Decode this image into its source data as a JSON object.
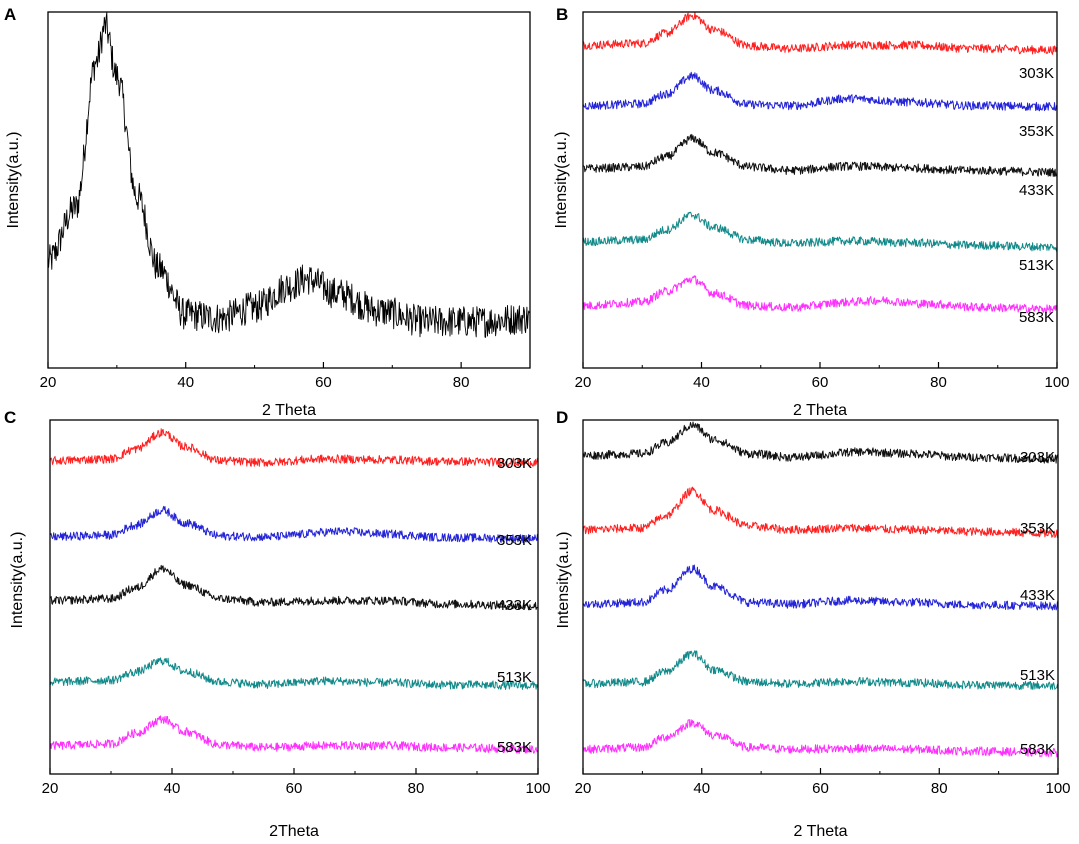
{
  "chart_data": [
    {
      "panel": "A",
      "type": "line",
      "title": "",
      "xlabel": "2 Theta",
      "ylabel": "Intensity(a.u.)",
      "xlim": [
        20,
        90
      ],
      "ylim": [
        0,
        1
      ],
      "xticks": [
        20,
        40,
        60,
        80
      ],
      "series": [
        {
          "name": "",
          "color": "#000000",
          "points": [
            [
              20,
              0.3
            ],
            [
              24,
              0.45
            ],
            [
              27,
              0.86
            ],
            [
              28.3,
              0.96
            ],
            [
              30,
              0.82
            ],
            [
              33,
              0.48
            ],
            [
              36,
              0.28
            ],
            [
              40,
              0.15
            ],
            [
              45,
              0.14
            ],
            [
              50,
              0.17
            ],
            [
              55,
              0.23
            ],
            [
              57.5,
              0.25
            ],
            [
              62,
              0.21
            ],
            [
              68,
              0.16
            ],
            [
              75,
              0.13
            ],
            [
              82,
              0.13
            ],
            [
              90,
              0.14
            ]
          ]
        }
      ]
    },
    {
      "panel": "B",
      "type": "line",
      "title": "",
      "xlabel": "2 Theta",
      "ylabel": "Intensity(a.u.)",
      "xlim": [
        20,
        100
      ],
      "ylim": [
        0,
        1
      ],
      "xticks": [
        20,
        40,
        60,
        80,
        100
      ],
      "series": [
        {
          "name": "303K",
          "color": "#ff2020",
          "points": [
            [
              20,
              0.907
            ],
            [
              30,
              0.912
            ],
            [
              34,
              0.94
            ],
            [
              38.5,
              0.99
            ],
            [
              42,
              0.95
            ],
            [
              48,
              0.905
            ],
            [
              55,
              0.897
            ],
            [
              65,
              0.907
            ],
            [
              75,
              0.907
            ],
            [
              85,
              0.898
            ],
            [
              100,
              0.893
            ]
          ]
        },
        {
          "name": "353K",
          "color": "#2424d8",
          "points": [
            [
              20,
              0.737
            ],
            [
              30,
              0.742
            ],
            [
              34,
              0.77
            ],
            [
              38.5,
              0.82
            ],
            [
              42,
              0.78
            ],
            [
              48,
              0.74
            ],
            [
              55,
              0.737
            ],
            [
              65,
              0.757
            ],
            [
              75,
              0.747
            ],
            [
              85,
              0.737
            ],
            [
              100,
              0.734
            ]
          ]
        },
        {
          "name": "433K",
          "color": "#111111",
          "points": [
            [
              20,
              0.56
            ],
            [
              30,
              0.565
            ],
            [
              34,
              0.593
            ],
            [
              38.5,
              0.645
            ],
            [
              42,
              0.605
            ],
            [
              48,
              0.565
            ],
            [
              55,
              0.555
            ],
            [
              65,
              0.567
            ],
            [
              75,
              0.562
            ],
            [
              85,
              0.555
            ],
            [
              100,
              0.55
            ]
          ]
        },
        {
          "name": "513K",
          "color": "#138a8a",
          "points": [
            [
              20,
              0.355
            ],
            [
              30,
              0.36
            ],
            [
              34,
              0.388
            ],
            [
              38.5,
              0.43
            ],
            [
              42,
              0.395
            ],
            [
              48,
              0.36
            ],
            [
              55,
              0.35
            ],
            [
              65,
              0.357
            ],
            [
              75,
              0.352
            ],
            [
              85,
              0.345
            ],
            [
              100,
              0.34
            ]
          ]
        },
        {
          "name": "583K",
          "color": "#ff30ff",
          "points": [
            [
              20,
              0.175
            ],
            [
              30,
              0.185
            ],
            [
              34,
              0.215
            ],
            [
              38.5,
              0.25
            ],
            [
              42,
              0.21
            ],
            [
              48,
              0.175
            ],
            [
              55,
              0.17
            ],
            [
              65,
              0.185
            ],
            [
              70,
              0.19
            ],
            [
              78,
              0.18
            ],
            [
              88,
              0.17
            ],
            [
              100,
              0.165
            ]
          ]
        }
      ]
    },
    {
      "panel": "C",
      "type": "line",
      "title": "",
      "xlabel": "2Theta",
      "ylabel": "Intensity(a.u.)",
      "xlim": [
        20,
        100
      ],
      "ylim": [
        0,
        1
      ],
      "xticks": [
        20,
        40,
        60,
        80,
        100
      ],
      "series": [
        {
          "name": "303K",
          "color": "#ff2020",
          "points": [
            [
              20,
              0.885
            ],
            [
              30,
              0.89
            ],
            [
              34,
              0.918
            ],
            [
              38.5,
              0.965
            ],
            [
              42,
              0.925
            ],
            [
              48,
              0.885
            ],
            [
              55,
              0.88
            ],
            [
              65,
              0.89
            ],
            [
              75,
              0.888
            ],
            [
              85,
              0.883
            ],
            [
              100,
              0.88
            ]
          ]
        },
        {
          "name": "353K",
          "color": "#2424d8",
          "points": [
            [
              20,
              0.67
            ],
            [
              30,
              0.675
            ],
            [
              34,
              0.703
            ],
            [
              38.5,
              0.745
            ],
            [
              42,
              0.71
            ],
            [
              48,
              0.672
            ],
            [
              55,
              0.67
            ],
            [
              68,
              0.685
            ],
            [
              75,
              0.678
            ],
            [
              85,
              0.668
            ],
            [
              100,
              0.665
            ]
          ]
        },
        {
          "name": "433K",
          "color": "#111111",
          "points": [
            [
              20,
              0.49
            ],
            [
              30,
              0.495
            ],
            [
              34,
              0.525
            ],
            [
              38.5,
              0.58
            ],
            [
              42,
              0.535
            ],
            [
              48,
              0.495
            ],
            [
              55,
              0.485
            ],
            [
              65,
              0.49
            ],
            [
              75,
              0.49
            ],
            [
              85,
              0.48
            ],
            [
              100,
              0.475
            ]
          ]
        },
        {
          "name": "513K",
          "color": "#138a8a",
          "points": [
            [
              20,
              0.26
            ],
            [
              30,
              0.265
            ],
            [
              34,
              0.288
            ],
            [
              38.5,
              0.32
            ],
            [
              42,
              0.29
            ],
            [
              48,
              0.26
            ],
            [
              55,
              0.253
            ],
            [
              65,
              0.263
            ],
            [
              75,
              0.258
            ],
            [
              85,
              0.252
            ],
            [
              100,
              0.25
            ]
          ]
        },
        {
          "name": "583K",
          "color": "#ff30ff",
          "points": [
            [
              20,
              0.08
            ],
            [
              30,
              0.085
            ],
            [
              34,
              0.115
            ],
            [
              38.5,
              0.155
            ],
            [
              42,
              0.12
            ],
            [
              48,
              0.082
            ],
            [
              55,
              0.075
            ],
            [
              65,
              0.08
            ],
            [
              75,
              0.08
            ],
            [
              85,
              0.075
            ],
            [
              100,
              0.07
            ]
          ]
        }
      ]
    },
    {
      "panel": "D",
      "type": "line",
      "title": "",
      "xlabel": "2 Theta",
      "ylabel": "Intensity(a.u.)",
      "xlim": [
        20,
        100
      ],
      "ylim": [
        0,
        1
      ],
      "xticks": [
        20,
        40,
        60,
        80,
        100
      ],
      "series": [
        {
          "name": "303K",
          "color": "#111111",
          "points": [
            [
              20,
              0.9
            ],
            [
              30,
              0.905
            ],
            [
              34,
              0.935
            ],
            [
              38.5,
              0.985
            ],
            [
              42,
              0.945
            ],
            [
              48,
              0.905
            ],
            [
              55,
              0.895
            ],
            [
              67,
              0.91
            ],
            [
              75,
              0.905
            ],
            [
              85,
              0.895
            ],
            [
              100,
              0.89
            ]
          ]
        },
        {
          "name": "353K",
          "color": "#ff2020",
          "points": [
            [
              20,
              0.69
            ],
            [
              30,
              0.695
            ],
            [
              34,
              0.73
            ],
            [
              38.5,
              0.8
            ],
            [
              42,
              0.745
            ],
            [
              48,
              0.7
            ],
            [
              55,
              0.69
            ],
            [
              65,
              0.695
            ],
            [
              75,
              0.69
            ],
            [
              85,
              0.685
            ],
            [
              100,
              0.68
            ]
          ]
        },
        {
          "name": "433K",
          "color": "#2424d8",
          "points": [
            [
              20,
              0.48
            ],
            [
              30,
              0.485
            ],
            [
              34,
              0.52
            ],
            [
              38.5,
              0.58
            ],
            [
              42,
              0.53
            ],
            [
              48,
              0.485
            ],
            [
              55,
              0.48
            ],
            [
              65,
              0.49
            ],
            [
              75,
              0.485
            ],
            [
              85,
              0.478
            ],
            [
              100,
              0.475
            ]
          ]
        },
        {
          "name": "513K",
          "color": "#138a8a",
          "points": [
            [
              20,
              0.255
            ],
            [
              30,
              0.26
            ],
            [
              34,
              0.29
            ],
            [
              38.5,
              0.34
            ],
            [
              42,
              0.295
            ],
            [
              48,
              0.26
            ],
            [
              55,
              0.255
            ],
            [
              65,
              0.262
            ],
            [
              75,
              0.258
            ],
            [
              85,
              0.252
            ],
            [
              100,
              0.25
            ]
          ]
        },
        {
          "name": "583K",
          "color": "#ff30ff",
          "points": [
            [
              20,
              0.07
            ],
            [
              30,
              0.075
            ],
            [
              34,
              0.105
            ],
            [
              38.5,
              0.145
            ],
            [
              42,
              0.11
            ],
            [
              48,
              0.075
            ],
            [
              55,
              0.07
            ],
            [
              65,
              0.072
            ],
            [
              75,
              0.07
            ],
            [
              85,
              0.065
            ],
            [
              100,
              0.06
            ]
          ]
        }
      ]
    }
  ]
}
